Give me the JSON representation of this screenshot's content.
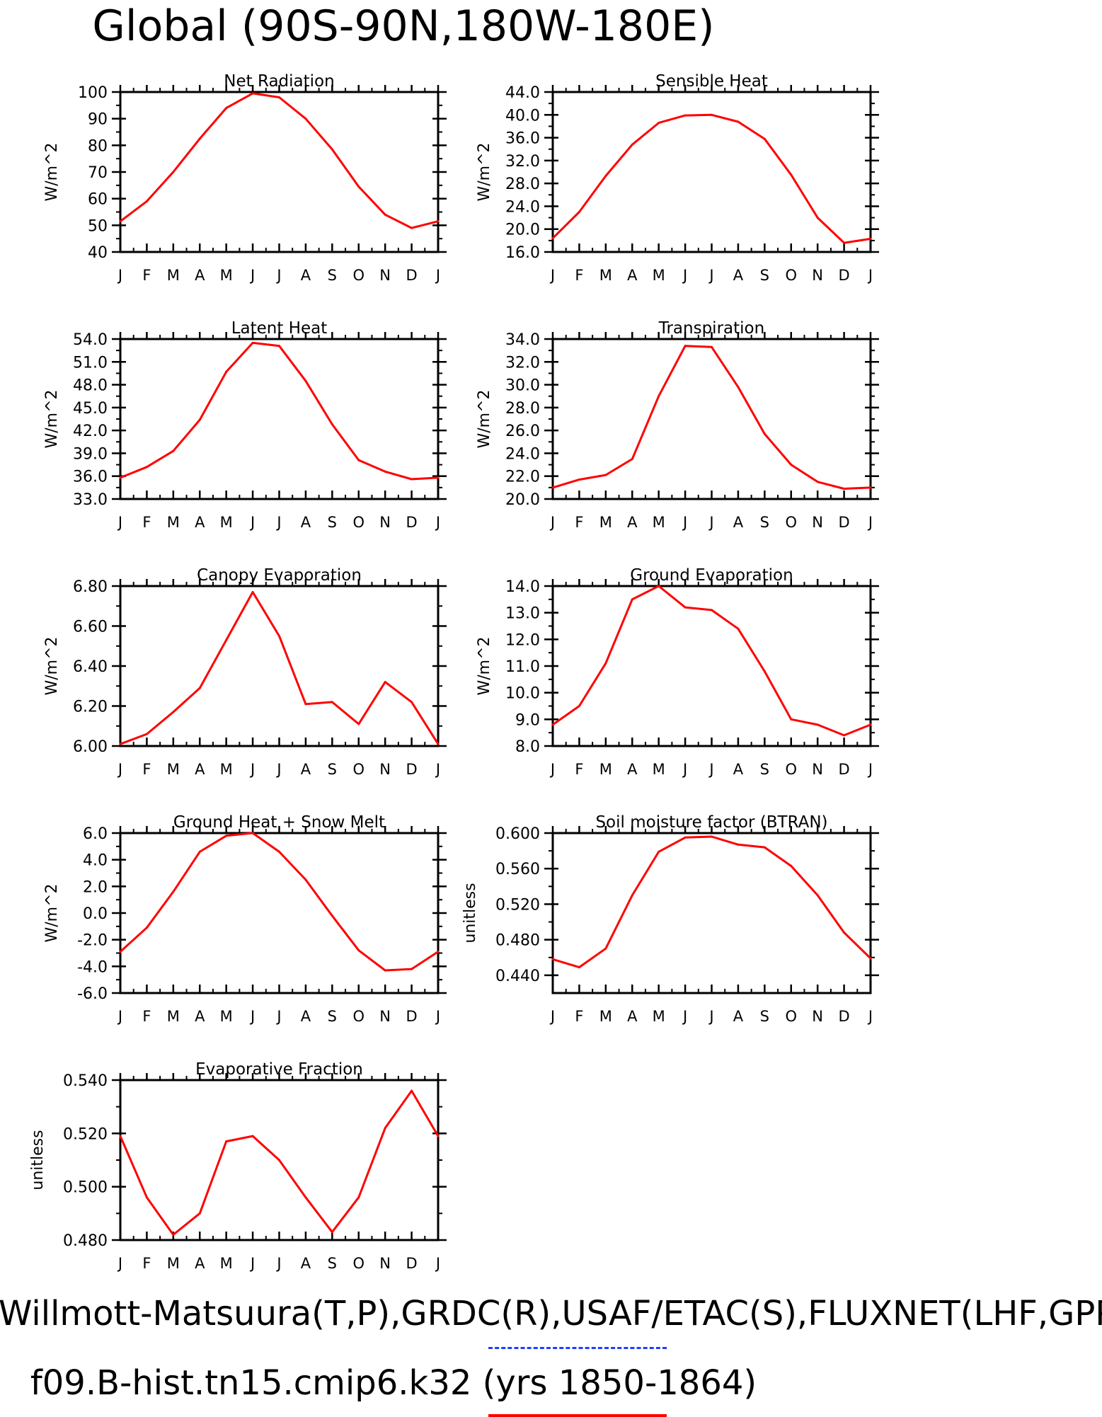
{
  "page": {
    "title": "Global (90S-90N,180W-180E)",
    "footer_line1": "Willmott-Matsuura(T,P),GRDC(R),USAF/ETAC(S),FLUXNET(LHF,GPP)",
    "footer_line2": "f09.B-hist.tn15.cmip6.k32 (yrs 1850-1864)",
    "series_colors": {
      "model": "#ff0000",
      "obs_dash": "#1f3fff"
    }
  },
  "chart_data": [
    {
      "type": "line",
      "title": "Net Radiation",
      "ylabel": "W/m^2",
      "x": [
        "J",
        "F",
        "M",
        "A",
        "M",
        "J",
        "J",
        "A",
        "S",
        "O",
        "N",
        "D",
        "J"
      ],
      "ylim": [
        40,
        100
      ],
      "yticks": [
        40,
        50,
        60,
        70,
        80,
        90,
        100
      ],
      "ytick_labels": [
        "40",
        "50",
        "60",
        "70",
        "80",
        "90",
        "100"
      ],
      "values": [
        51.5,
        59,
        70,
        82.5,
        94,
        99.5,
        98,
        90,
        78.5,
        64.5,
        54,
        49,
        51.5
      ]
    },
    {
      "type": "line",
      "title": "Sensible Heat",
      "ylabel": "W/m^2",
      "x": [
        "J",
        "F",
        "M",
        "A",
        "M",
        "J",
        "J",
        "A",
        "S",
        "O",
        "N",
        "D",
        "J"
      ],
      "ylim": [
        16.0,
        44.0
      ],
      "yticks": [
        16,
        20,
        24,
        28,
        32,
        36,
        40,
        44
      ],
      "ytick_labels": [
        "16.0",
        "20.0",
        "24.0",
        "28.0",
        "32.0",
        "36.0",
        "40.0",
        "44.0"
      ],
      "values": [
        18.4,
        23.0,
        29.3,
        34.8,
        38.6,
        39.9,
        40.0,
        38.8,
        35.8,
        29.5,
        22.0,
        17.6,
        18.3
      ]
    },
    {
      "type": "line",
      "title": "Latent Heat",
      "ylabel": "W/m^2",
      "x": [
        "J",
        "F",
        "M",
        "A",
        "M",
        "J",
        "J",
        "A",
        "S",
        "O",
        "N",
        "D",
        "J"
      ],
      "ylim": [
        33.0,
        54.0
      ],
      "yticks": [
        33,
        36,
        39,
        42,
        45,
        48,
        51,
        54
      ],
      "ytick_labels": [
        "33.0",
        "36.0",
        "39.0",
        "42.0",
        "45.0",
        "48.0",
        "51.0",
        "54.0"
      ],
      "values": [
        35.8,
        37.2,
        39.3,
        43.4,
        49.7,
        53.5,
        53.1,
        48.5,
        42.8,
        38.1,
        36.6,
        35.6,
        35.8
      ]
    },
    {
      "type": "line",
      "title": "Transpiration",
      "ylabel": "W/m^2",
      "x": [
        "J",
        "F",
        "M",
        "A",
        "M",
        "J",
        "J",
        "A",
        "S",
        "O",
        "N",
        "D",
        "J"
      ],
      "ylim": [
        20.0,
        34.0
      ],
      "yticks": [
        20,
        22,
        24,
        26,
        28,
        30,
        32,
        34
      ],
      "ytick_labels": [
        "20.0",
        "22.0",
        "24.0",
        "26.0",
        "28.0",
        "30.0",
        "32.0",
        "34.0"
      ],
      "values": [
        21.0,
        21.7,
        22.1,
        23.5,
        29.0,
        33.4,
        33.3,
        29.8,
        25.7,
        23.0,
        21.5,
        20.9,
        21.0
      ]
    },
    {
      "type": "line",
      "title": "Canopy Evaporation",
      "ylabel": "W/m^2",
      "x": [
        "J",
        "F",
        "M",
        "A",
        "M",
        "J",
        "J",
        "A",
        "S",
        "O",
        "N",
        "D",
        "J"
      ],
      "ylim": [
        6.0,
        6.8
      ],
      "yticks": [
        6.0,
        6.2,
        6.4,
        6.6,
        6.8
      ],
      "ytick_labels": [
        "6.00",
        "6.20",
        "6.40",
        "6.60",
        "6.80"
      ],
      "values": [
        6.01,
        6.06,
        6.17,
        6.29,
        6.53,
        6.77,
        6.55,
        6.21,
        6.22,
        6.11,
        6.32,
        6.22,
        6.01
      ]
    },
    {
      "type": "line",
      "title": "Ground Evaporation",
      "ylabel": "W/m^2",
      "x": [
        "J",
        "F",
        "M",
        "A",
        "M",
        "J",
        "J",
        "A",
        "S",
        "O",
        "N",
        "D",
        "J"
      ],
      "ylim": [
        8.0,
        14.0
      ],
      "yticks": [
        8,
        9,
        10,
        11,
        12,
        13,
        14
      ],
      "ytick_labels": [
        "8.0",
        "9.0",
        "10.0",
        "11.0",
        "12.0",
        "13.0",
        "14.0"
      ],
      "values": [
        8.8,
        9.5,
        11.1,
        13.5,
        14.0,
        13.2,
        13.1,
        12.4,
        10.8,
        9.0,
        8.8,
        8.4,
        8.8
      ]
    },
    {
      "type": "line",
      "title": "Ground Heat + Snow Melt",
      "ylabel": "W/m^2",
      "x": [
        "J",
        "F",
        "M",
        "A",
        "M",
        "J",
        "J",
        "A",
        "S",
        "O",
        "N",
        "D",
        "J"
      ],
      "ylim": [
        -6.0,
        6.0
      ],
      "yticks": [
        -6,
        -4,
        -2,
        0,
        2,
        4,
        6
      ],
      "ytick_labels": [
        "-6.0",
        "-4.0",
        "-2.0",
        "0.0",
        "2.0",
        "4.0",
        "6.0"
      ],
      "values": [
        -2.9,
        -1.1,
        1.6,
        4.6,
        5.8,
        6.0,
        4.6,
        2.5,
        -0.2,
        -2.8,
        -4.3,
        -4.2,
        -2.9
      ]
    },
    {
      "type": "line",
      "title": "Soil moisture factor (BTRAN)",
      "ylabel": "unitless",
      "x": [
        "J",
        "F",
        "M",
        "A",
        "M",
        "J",
        "J",
        "A",
        "S",
        "O",
        "N",
        "D",
        "J"
      ],
      "ylim": [
        0.42,
        0.6
      ],
      "yticks": [
        0.44,
        0.48,
        0.52,
        0.56,
        0.6
      ],
      "ytick_labels": [
        "0.440",
        "0.480",
        "0.520",
        "0.560",
        "0.600"
      ],
      "values": [
        0.458,
        0.449,
        0.47,
        0.53,
        0.579,
        0.595,
        0.596,
        0.587,
        0.584,
        0.563,
        0.53,
        0.488,
        0.459
      ]
    },
    {
      "type": "line",
      "title": "Evaporative Fraction",
      "ylabel": "unitless",
      "x": [
        "J",
        "F",
        "M",
        "A",
        "M",
        "J",
        "J",
        "A",
        "S",
        "O",
        "N",
        "D",
        "J"
      ],
      "ylim": [
        0.48,
        0.54
      ],
      "yticks": [
        0.48,
        0.5,
        0.52,
        0.54
      ],
      "ytick_labels": [
        "0.480",
        "0.500",
        "0.520",
        "0.540"
      ],
      "values": [
        0.519,
        0.496,
        0.482,
        0.49,
        0.517,
        0.519,
        0.51,
        0.496,
        0.483,
        0.496,
        0.522,
        0.536,
        0.519
      ]
    }
  ]
}
